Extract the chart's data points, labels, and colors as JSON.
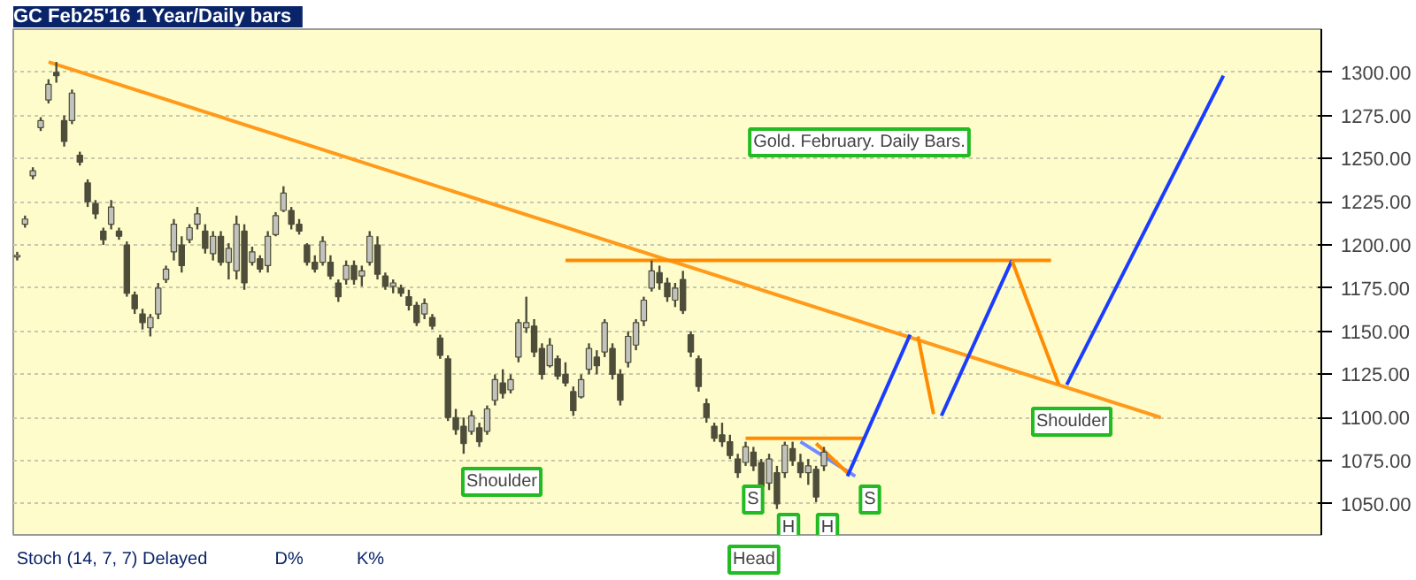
{
  "chart_data": {
    "type": "candlestick",
    "title": "GC Feb25'16   1 Year/Daily bars",
    "subtitle": "Gold. February. Daily Bars.",
    "color": "#4d4d3a",
    "categories": [
      null,
      null,
      null,
      null,
      null,
      null,
      null,
      null,
      null,
      null,
      null,
      null,
      null,
      null,
      null,
      null,
      null,
      null,
      null,
      null,
      null,
      null,
      null,
      null,
      null,
      null,
      null,
      null,
      null,
      null,
      null,
      null,
      null,
      null,
      null,
      null,
      null,
      null,
      null,
      null,
      null,
      null,
      null,
      null,
      null,
      null,
      null,
      null,
      null,
      null,
      null,
      null,
      null,
      null,
      null,
      null,
      null,
      null,
      null,
      null,
      null,
      null,
      null,
      null,
      null,
      null,
      null,
      null,
      null,
      null,
      null,
      null,
      null,
      null,
      null,
      null,
      null,
      null,
      null,
      null,
      null,
      null,
      null,
      null,
      null,
      null,
      null,
      null,
      null,
      null,
      null,
      null,
      null,
      null,
      null,
      null,
      null,
      null,
      null,
      null,
      null,
      null,
      null,
      null,
      null,
      null,
      null,
      null,
      null,
      null,
      null,
      null,
      null,
      null,
      null,
      null,
      null,
      null,
      null,
      null,
      null,
      null,
      null,
      null,
      null,
      null,
      null,
      null,
      null,
      null,
      null,
      null,
      null,
      null,
      null,
      null,
      null,
      null,
      null,
      null,
      null,
      null,
      null,
      null,
      null,
      null,
      null,
      null,
      null,
      null,
      null,
      null,
      null,
      null,
      null,
      null,
      null,
      null,
      null,
      null,
      null,
      null,
      null,
      null,
      null,
      null,
      null
    ],
    "ohlc": [
      [
        1193,
        1196,
        1191,
        1194
      ],
      [
        1212,
        1217,
        1210,
        1215
      ],
      [
        1240,
        1245,
        1238,
        1243
      ],
      [
        1268,
        1274,
        1266,
        1272
      ],
      [
        1284,
        1296,
        1282,
        1293
      ],
      [
        1300,
        1306,
        1294,
        1298
      ],
      [
        1272,
        1275,
        1257,
        1260
      ],
      [
        1272,
        1290,
        1270,
        1288
      ],
      [
        1252,
        1254,
        1246,
        1248
      ],
      [
        1236,
        1238,
        1222,
        1225
      ],
      [
        1224,
        1226,
        1215,
        1218
      ],
      [
        1208,
        1210,
        1200,
        1203
      ],
      [
        1212,
        1226,
        1209,
        1222
      ],
      [
        1208,
        1210,
        1203,
        1205
      ],
      [
        1200,
        1202,
        1170,
        1172
      ],
      [
        1171,
        1173,
        1160,
        1163
      ],
      [
        1160,
        1163,
        1151,
        1155
      ],
      [
        1152,
        1160,
        1147,
        1158
      ],
      [
        1160,
        1178,
        1157,
        1175
      ],
      [
        1180,
        1188,
        1178,
        1186
      ],
      [
        1196,
        1215,
        1191,
        1212
      ],
      [
        1200,
        1205,
        1184,
        1188
      ],
      [
        1203,
        1212,
        1201,
        1210
      ],
      [
        1212,
        1222,
        1209,
        1218
      ],
      [
        1208,
        1212,
        1195,
        1198
      ],
      [
        1195,
        1208,
        1191,
        1205
      ],
      [
        1205,
        1208,
        1188,
        1190
      ],
      [
        1190,
        1201,
        1180,
        1198
      ],
      [
        1185,
        1217,
        1180,
        1212
      ],
      [
        1208,
        1212,
        1174,
        1178
      ],
      [
        1190,
        1199,
        1188,
        1196
      ],
      [
        1192,
        1194,
        1184,
        1186
      ],
      [
        1188,
        1208,
        1184,
        1205
      ],
      [
        1206,
        1219,
        1205,
        1217
      ],
      [
        1220,
        1234,
        1219,
        1230
      ],
      [
        1220,
        1222,
        1209,
        1212
      ],
      [
        1212,
        1215,
        1206,
        1208
      ],
      [
        1200,
        1201,
        1188,
        1190
      ],
      [
        1190,
        1194,
        1184,
        1186
      ],
      [
        1190,
        1205,
        1188,
        1202
      ],
      [
        1190,
        1194,
        1180,
        1182
      ],
      [
        1178,
        1180,
        1167,
        1170
      ],
      [
        1180,
        1191,
        1177,
        1188
      ],
      [
        1188,
        1191,
        1177,
        1180
      ],
      [
        1182,
        1188,
        1176,
        1185
      ],
      [
        1190,
        1208,
        1188,
        1205
      ],
      [
        1200,
        1205,
        1180,
        1183
      ],
      [
        1182,
        1184,
        1174,
        1176
      ],
      [
        1176,
        1180,
        1172,
        1178
      ],
      [
        1175,
        1177,
        1170,
        1172
      ],
      [
        1170,
        1174,
        1162,
        1165
      ],
      [
        1165,
        1167,
        1153,
        1155
      ],
      [
        1160,
        1169,
        1157,
        1166
      ],
      [
        1158,
        1160,
        1151,
        1153
      ],
      [
        1146,
        1148,
        1134,
        1136
      ],
      [
        1134,
        1136,
        1098,
        1100
      ],
      [
        1100,
        1105,
        1090,
        1093
      ],
      [
        1095,
        1100,
        1079,
        1085
      ],
      [
        1092,
        1104,
        1090,
        1101
      ],
      [
        1094,
        1097,
        1083,
        1086
      ],
      [
        1092,
        1107,
        1090,
        1105
      ],
      [
        1110,
        1125,
        1107,
        1122
      ],
      [
        1120,
        1128,
        1111,
        1114
      ],
      [
        1116,
        1125,
        1114,
        1122
      ],
      [
        1135,
        1157,
        1132,
        1155
      ],
      [
        1152,
        1170,
        1149,
        1155
      ],
      [
        1153,
        1157,
        1135,
        1138
      ],
      [
        1140,
        1143,
        1122,
        1125
      ],
      [
        1130,
        1146,
        1129,
        1142
      ],
      [
        1134,
        1136,
        1122,
        1124
      ],
      [
        1125,
        1132,
        1118,
        1120
      ],
      [
        1115,
        1118,
        1101,
        1104
      ],
      [
        1112,
        1125,
        1111,
        1122
      ],
      [
        1128,
        1143,
        1125,
        1140
      ],
      [
        1135,
        1139,
        1125,
        1130
      ],
      [
        1138,
        1157,
        1135,
        1155
      ],
      [
        1140,
        1143,
        1122,
        1125
      ],
      [
        1125,
        1128,
        1107,
        1110
      ],
      [
        1132,
        1150,
        1129,
        1147
      ],
      [
        1142,
        1157,
        1139,
        1155
      ],
      [
        1156,
        1170,
        1153,
        1168
      ],
      [
        1175,
        1191,
        1173,
        1185
      ],
      [
        1184,
        1188,
        1174,
        1178
      ],
      [
        1178,
        1181,
        1167,
        1170
      ],
      [
        1168,
        1178,
        1164,
        1175
      ],
      [
        1180,
        1185,
        1160,
        1162
      ],
      [
        1148,
        1150,
        1135,
        1138
      ],
      [
        1134,
        1136,
        1115,
        1118
      ],
      [
        1108,
        1111,
        1097,
        1100
      ],
      [
        1095,
        1097,
        1086,
        1088
      ],
      [
        1090,
        1097,
        1083,
        1086
      ],
      [
        1086,
        1090,
        1076,
        1078
      ],
      [
        1076,
        1079,
        1065,
        1068
      ],
      [
        1074,
        1086,
        1072,
        1083
      ],
      [
        1080,
        1083,
        1069,
        1072
      ],
      [
        1074,
        1076,
        1058,
        1060
      ],
      [
        1062,
        1079,
        1058,
        1076
      ],
      [
        1068,
        1072,
        1047,
        1050
      ],
      [
        1068,
        1086,
        1065,
        1084
      ],
      [
        1082,
        1086,
        1072,
        1075
      ],
      [
        1074,
        1079,
        1065,
        1068
      ],
      [
        1068,
        1076,
        1061,
        1072
      ],
      [
        1070,
        1072,
        1051,
        1054
      ],
      [
        1072,
        1083,
        1069,
        1080
      ],
      null,
      null,
      null,
      null,
      null,
      null,
      null,
      null,
      null,
      null,
      null,
      null,
      null,
      null,
      null,
      null,
      null,
      null,
      null,
      null,
      null,
      null,
      null,
      null,
      null,
      null,
      null,
      null,
      null,
      null,
      null,
      null,
      null,
      null,
      null,
      null,
      null,
      null,
      null,
      null,
      null,
      null,
      null,
      null,
      null,
      null,
      null,
      null,
      null,
      null,
      null,
      null,
      null,
      null,
      null,
      null,
      null,
      null,
      null,
      null,
      null,
      null,
      null
    ],
    "series": [
      {
        "type": "line",
        "color": "#ff9a1a",
        "values": [
          null,
          null,
          null,
          null,
          1306,
          null,
          null,
          null,
          null,
          null,
          null,
          null,
          null,
          null,
          null,
          null,
          null,
          null,
          null,
          null,
          null,
          null,
          null,
          null,
          null,
          null,
          null,
          null,
          null,
          null,
          null,
          null,
          null,
          null,
          null,
          null,
          null,
          null,
          null,
          null,
          null,
          null,
          null,
          null,
          null,
          null,
          null,
          null,
          null,
          null,
          null,
          null,
          null,
          null,
          null,
          null,
          null,
          null,
          null,
          null,
          null,
          null,
          null,
          null,
          null,
          null,
          null,
          null,
          null,
          null,
          null,
          null,
          null,
          null,
          null,
          null,
          null,
          null,
          null,
          null,
          null,
          null,
          null,
          null,
          null,
          null,
          null,
          null,
          null,
          null,
          null,
          null,
          null,
          null,
          null,
          null,
          null,
          null,
          null,
          null,
          null,
          null,
          null,
          null,
          null,
          null,
          null,
          null,
          null,
          null,
          null,
          null,
          null,
          null,
          null,
          null,
          null,
          null,
          null,
          null,
          null,
          null,
          null,
          null,
          null,
          null,
          null,
          null,
          null,
          null,
          null,
          null,
          null,
          null,
          null,
          null,
          null,
          null,
          null,
          null,
          null,
          null,
          null,
          null,
          null,
          null,
          1100,
          null,
          null,
          null,
          null,
          null,
          null,
          null,
          null,
          null,
          null,
          null,
          null,
          null,
          null,
          null,
          null,
          null,
          null,
          null,
          null
        ]
      },
      {
        "type": "line",
        "color": "#ff8c00",
        "values": [
          null,
          null,
          null,
          null,
          null,
          null,
          null,
          null,
          null,
          null,
          null,
          null,
          null,
          null,
          null,
          null,
          null,
          null,
          null,
          null,
          null,
          null,
          null,
          null,
          null,
          null,
          null,
          null,
          null,
          null,
          null,
          null,
          null,
          null,
          null,
          null,
          null,
          null,
          null,
          null,
          null,
          null,
          null,
          null,
          null,
          null,
          null,
          null,
          null,
          null,
          null,
          null,
          null,
          null,
          null,
          null,
          null,
          null,
          null,
          null,
          null,
          null,
          null,
          null,
          null,
          null,
          null,
          null,
          null,
          null,
          1191,
          null,
          null,
          null,
          null,
          null,
          null,
          null,
          null,
          null,
          null,
          null,
          null,
          null,
          null,
          null,
          null,
          null,
          null,
          null,
          null,
          null,
          null,
          null,
          null,
          null,
          null,
          null,
          null,
          null,
          null,
          null,
          null,
          null,
          null,
          null,
          null,
          null,
          null,
          null,
          null,
          null,
          null,
          null,
          null,
          null,
          null,
          null,
          null,
          null,
          null,
          null,
          null,
          null,
          null,
          null,
          null,
          null,
          null,
          null,
          null,
          null,
          1191,
          null,
          null,
          null,
          null,
          null,
          null,
          null,
          null,
          null,
          null,
          null,
          null,
          null,
          null,
          null,
          null,
          null,
          null,
          null,
          null,
          null,
          null,
          null,
          null,
          null,
          null,
          null,
          null,
          null,
          null,
          null,
          null,
          null,
          null
        ]
      },
      {
        "type": "line",
        "color": "#ff8c00",
        "values": [
          null,
          null,
          null,
          null,
          null,
          null,
          null,
          null,
          null,
          null,
          null,
          null,
          null,
          null,
          null,
          null,
          null,
          null,
          null,
          null,
          null,
          null,
          null,
          null,
          null,
          null,
          null,
          null,
          null,
          null,
          null,
          null,
          null,
          null,
          null,
          null,
          null,
          null,
          null,
          null,
          null,
          null,
          null,
          null,
          null,
          null,
          null,
          null,
          null,
          null,
          null,
          null,
          null,
          null,
          null,
          null,
          null,
          null,
          null,
          null,
          null,
          null,
          null,
          null,
          null,
          null,
          null,
          null,
          null,
          null,
          null,
          null,
          null,
          null,
          null,
          null,
          null,
          null,
          null,
          null,
          null,
          null,
          null,
          null,
          null,
          null,
          null,
          null,
          null,
          null,
          null,
          null,
          null,
          1088,
          null,
          null,
          null,
          null,
          null,
          null,
          null,
          null,
          null,
          null,
          null,
          null,
          null,
          null,
          1088,
          null,
          null,
          null,
          null,
          null,
          null,
          null,
          null,
          null,
          null,
          null,
          null,
          null,
          null,
          null,
          null,
          null,
          null,
          null,
          null,
          null,
          null,
          null,
          null,
          null,
          null,
          null,
          null,
          null,
          null,
          null,
          null,
          null,
          null,
          null,
          null,
          null,
          null,
          null,
          null,
          null,
          null,
          null,
          null,
          null,
          null,
          null,
          null,
          null,
          null,
          null,
          null,
          null,
          null,
          null,
          null,
          null,
          null
        ]
      },
      {
        "type": "line",
        "color": "#6f8cff",
        "values": [
          null,
          null,
          null,
          null,
          null,
          null,
          null,
          null,
          null,
          null,
          null,
          null,
          null,
          null,
          null,
          null,
          null,
          null,
          null,
          null,
          null,
          null,
          null,
          null,
          null,
          null,
          null,
          null,
          null,
          null,
          null,
          null,
          null,
          null,
          null,
          null,
          null,
          null,
          null,
          null,
          null,
          null,
          null,
          null,
          null,
          null,
          null,
          null,
          null,
          null,
          null,
          null,
          null,
          null,
          null,
          null,
          null,
          null,
          null,
          null,
          null,
          null,
          null,
          null,
          null,
          null,
          null,
          null,
          null,
          null,
          null,
          null,
          null,
          null,
          null,
          null,
          null,
          null,
          null,
          null,
          null,
          null,
          null,
          null,
          null,
          null,
          null,
          null,
          null,
          null,
          null,
          null,
          null,
          null,
          null,
          null,
          null,
          null,
          null,
          null,
          1086,
          null,
          null,
          null,
          null,
          null,
          null,
          1066,
          null,
          null,
          null,
          null,
          null,
          null,
          null,
          null,
          null,
          null,
          null,
          null,
          null,
          null,
          null,
          null,
          null,
          null,
          null,
          null,
          null,
          null,
          null,
          null,
          null,
          null,
          null,
          null,
          null,
          null,
          null,
          null,
          null,
          null,
          null,
          null,
          null,
          null,
          null,
          null,
          null,
          null,
          null,
          null,
          null,
          null,
          null,
          null,
          null,
          null,
          null,
          null,
          null,
          null,
          null,
          null,
          null,
          null,
          null
        ]
      },
      {
        "type": "line",
        "color": "#ff8c00",
        "values": [
          null,
          null,
          null,
          null,
          null,
          null,
          null,
          null,
          null,
          null,
          null,
          null,
          null,
          null,
          null,
          null,
          null,
          null,
          null,
          null,
          null,
          null,
          null,
          null,
          null,
          null,
          null,
          null,
          null,
          null,
          null,
          null,
          null,
          null,
          null,
          null,
          null,
          null,
          null,
          null,
          null,
          null,
          null,
          null,
          null,
          null,
          null,
          null,
          null,
          null,
          null,
          null,
          null,
          null,
          null,
          null,
          null,
          null,
          null,
          null,
          null,
          null,
          null,
          null,
          null,
          null,
          null,
          null,
          null,
          null,
          null,
          null,
          null,
          null,
          null,
          null,
          null,
          null,
          null,
          null,
          null,
          null,
          null,
          null,
          null,
          null,
          null,
          null,
          null,
          null,
          null,
          null,
          null,
          null,
          null,
          null,
          null,
          null,
          null,
          null,
          null,
          null,
          1085,
          null,
          null,
          null,
          1068,
          null,
          null,
          null,
          null,
          null,
          null,
          null,
          null,
          null,
          null,
          null,
          null,
          null,
          null,
          null,
          null,
          null,
          null,
          null,
          null,
          null,
          null,
          null,
          null,
          null,
          null,
          null,
          null,
          null,
          null,
          null,
          null,
          null,
          null,
          null,
          null,
          null,
          null,
          null,
          null,
          null,
          null,
          null,
          null,
          null,
          null,
          null,
          null,
          null,
          null,
          null,
          null,
          null,
          null,
          null,
          null,
          null,
          null,
          null,
          null
        ]
      },
      {
        "type": "line",
        "color": "#1a3cff",
        "values": [
          null,
          null,
          null,
          null,
          null,
          null,
          null,
          null,
          null,
          null,
          null,
          null,
          null,
          null,
          null,
          null,
          null,
          null,
          null,
          null,
          null,
          null,
          null,
          null,
          null,
          null,
          null,
          null,
          null,
          null,
          null,
          null,
          null,
          null,
          null,
          null,
          null,
          null,
          null,
          null,
          null,
          null,
          null,
          null,
          null,
          null,
          null,
          null,
          null,
          null,
          null,
          null,
          null,
          null,
          null,
          null,
          null,
          null,
          null,
          null,
          null,
          null,
          null,
          null,
          null,
          null,
          null,
          null,
          null,
          null,
          null,
          null,
          null,
          null,
          null,
          null,
          null,
          null,
          null,
          null,
          null,
          null,
          null,
          null,
          null,
          null,
          null,
          null,
          null,
          null,
          null,
          null,
          null,
          null,
          null,
          null,
          null,
          null,
          null,
          null,
          null,
          null,
          null,
          null,
          null,
          null,
          1066,
          null,
          null,
          null,
          null,
          null,
          null,
          null,
          1148,
          null,
          null,
          null,
          null,
          null,
          null,
          null,
          null,
          null,
          null,
          null,
          null,
          null,
          null,
          null,
          null,
          null,
          null,
          null,
          null,
          null,
          null,
          null,
          null,
          null,
          null,
          null,
          null,
          null,
          null,
          null,
          null,
          null,
          null,
          null,
          null,
          null,
          null,
          null,
          null,
          null,
          null,
          null,
          null,
          null,
          null,
          null,
          null,
          null,
          null,
          null,
          null
        ]
      },
      {
        "type": "line",
        "color": "#ff8c00",
        "values": [
          null,
          null,
          null,
          null,
          null,
          null,
          null,
          null,
          null,
          null,
          null,
          null,
          null,
          null,
          null,
          null,
          null,
          null,
          null,
          null,
          null,
          null,
          null,
          null,
          null,
          null,
          null,
          null,
          null,
          null,
          null,
          null,
          null,
          null,
          null,
          null,
          null,
          null,
          null,
          null,
          null,
          null,
          null,
          null,
          null,
          null,
          null,
          null,
          null,
          null,
          null,
          null,
          null,
          null,
          null,
          null,
          null,
          null,
          null,
          null,
          null,
          null,
          null,
          null,
          null,
          null,
          null,
          null,
          null,
          null,
          null,
          null,
          null,
          null,
          null,
          null,
          null,
          null,
          null,
          null,
          null,
          null,
          null,
          null,
          null,
          null,
          null,
          null,
          null,
          null,
          null,
          null,
          null,
          null,
          null,
          null,
          null,
          null,
          null,
          null,
          null,
          null,
          null,
          null,
          null,
          null,
          null,
          null,
          null,
          null,
          null,
          null,
          null,
          null,
          null,
          1147,
          null,
          1102,
          null,
          null,
          null,
          null,
          null,
          null,
          null,
          null,
          null,
          null,
          null,
          null,
          null,
          null,
          null,
          null,
          null,
          null,
          null,
          null,
          null,
          null,
          null,
          null,
          null,
          null,
          null,
          null,
          null,
          null,
          null,
          null,
          null,
          null,
          null,
          null,
          null,
          null,
          null,
          null,
          null,
          null,
          null,
          null,
          null,
          null,
          null,
          null,
          null
        ]
      },
      {
        "type": "line",
        "color": "#1a3cff",
        "values": [
          null,
          null,
          null,
          null,
          null,
          null,
          null,
          null,
          null,
          null,
          null,
          null,
          null,
          null,
          null,
          null,
          null,
          null,
          null,
          null,
          null,
          null,
          null,
          null,
          null,
          null,
          null,
          null,
          null,
          null,
          null,
          null,
          null,
          null,
          null,
          null,
          null,
          null,
          null,
          null,
          null,
          null,
          null,
          null,
          null,
          null,
          null,
          null,
          null,
          null,
          null,
          null,
          null,
          null,
          null,
          null,
          null,
          null,
          null,
          null,
          null,
          null,
          null,
          null,
          null,
          null,
          null,
          null,
          null,
          null,
          null,
          null,
          null,
          null,
          null,
          null,
          null,
          null,
          null,
          null,
          null,
          null,
          null,
          null,
          null,
          null,
          null,
          null,
          null,
          null,
          null,
          null,
          null,
          null,
          null,
          null,
          null,
          null,
          null,
          null,
          null,
          null,
          null,
          null,
          null,
          null,
          null,
          null,
          null,
          null,
          null,
          null,
          null,
          null,
          null,
          null,
          null,
          null,
          1101,
          null,
          null,
          null,
          null,
          null,
          null,
          null,
          null,
          1191,
          null,
          null,
          null,
          null,
          null,
          null,
          null,
          null,
          null,
          null,
          null,
          null,
          null,
          null,
          null,
          null,
          null,
          null,
          null,
          null,
          null,
          null,
          null,
          null,
          null,
          null,
          null,
          null,
          null,
          null,
          null,
          null,
          null,
          null,
          null,
          null,
          null,
          null,
          null
        ]
      },
      {
        "type": "line",
        "color": "#ff8c00",
        "values": [
          null,
          null,
          null,
          null,
          null,
          null,
          null,
          null,
          null,
          null,
          null,
          null,
          null,
          null,
          null,
          null,
          null,
          null,
          null,
          null,
          null,
          null,
          null,
          null,
          null,
          null,
          null,
          null,
          null,
          null,
          null,
          null,
          null,
          null,
          null,
          null,
          null,
          null,
          null,
          null,
          null,
          null,
          null,
          null,
          null,
          null,
          null,
          null,
          null,
          null,
          null,
          null,
          null,
          null,
          null,
          null,
          null,
          null,
          null,
          null,
          null,
          null,
          null,
          null,
          null,
          null,
          null,
          null,
          null,
          null,
          null,
          null,
          null,
          null,
          null,
          null,
          null,
          null,
          null,
          null,
          null,
          null,
          null,
          null,
          null,
          null,
          null,
          null,
          null,
          null,
          null,
          null,
          null,
          null,
          null,
          null,
          null,
          null,
          null,
          null,
          null,
          null,
          null,
          null,
          null,
          null,
          null,
          null,
          null,
          null,
          null,
          null,
          null,
          null,
          null,
          null,
          null,
          null,
          null,
          null,
          null,
          null,
          null,
          null,
          null,
          null,
          null,
          1191,
          null,
          null,
          null,
          null,
          null,
          1119,
          null,
          null,
          null,
          null,
          null,
          null,
          null,
          null,
          null,
          null,
          null,
          null,
          null,
          null,
          null,
          null,
          null,
          null,
          null,
          null,
          null,
          null,
          null,
          null,
          null,
          null,
          null,
          null,
          null,
          null,
          null,
          null,
          null
        ]
      },
      {
        "type": "line",
        "color": "#1a3cff",
        "values": [
          null,
          null,
          null,
          null,
          null,
          null,
          null,
          null,
          null,
          null,
          null,
          null,
          null,
          null,
          null,
          null,
          null,
          null,
          null,
          null,
          null,
          null,
          null,
          null,
          null,
          null,
          null,
          null,
          null,
          null,
          null,
          null,
          null,
          null,
          null,
          null,
          null,
          null,
          null,
          null,
          null,
          null,
          null,
          null,
          null,
          null,
          null,
          null,
          null,
          null,
          null,
          null,
          null,
          null,
          null,
          null,
          null,
          null,
          null,
          null,
          null,
          null,
          null,
          null,
          null,
          null,
          null,
          null,
          null,
          null,
          null,
          null,
          null,
          null,
          null,
          null,
          null,
          null,
          null,
          null,
          null,
          null,
          null,
          null,
          null,
          null,
          null,
          null,
          null,
          null,
          null,
          null,
          null,
          null,
          null,
          null,
          null,
          null,
          null,
          null,
          null,
          null,
          null,
          null,
          null,
          null,
          null,
          null,
          null,
          null,
          null,
          null,
          null,
          null,
          null,
          null,
          null,
          null,
          null,
          null,
          null,
          null,
          null,
          null,
          null,
          null,
          null,
          null,
          null,
          null,
          null,
          null,
          null,
          null,
          1119,
          null,
          null,
          null,
          null,
          null,
          null,
          null,
          null,
          null,
          null,
          null,
          null,
          null,
          null,
          null,
          null,
          null,
          null,
          null,
          1298,
          null,
          null,
          null,
          null,
          null,
          null,
          null,
          null,
          null,
          null,
          null,
          null
        ]
      }
    ],
    "ylim": [
      1032,
      1325
    ],
    "yticks": [
      {
        "value": 1050,
        "label": "1050.00"
      },
      {
        "value": 1075,
        "label": "1075.00"
      },
      {
        "value": 1100,
        "label": "1100.00"
      },
      {
        "value": 1125,
        "label": "1125.00"
      },
      {
        "value": 1150,
        "label": "1150.00"
      },
      {
        "value": 1175,
        "label": "1175.00"
      },
      {
        "value": 1200,
        "label": "1200.00"
      },
      {
        "value": 1225,
        "label": "1225.00"
      },
      {
        "value": 1250,
        "label": "1250.00"
      },
      {
        "value": 1275,
        "label": "1275.00"
      },
      {
        "value": 1300,
        "label": "1300.00"
      }
    ],
    "tick_labels": "y",
    "grid": "y",
    "annotations": [
      "Shoulder",
      "S",
      "H",
      "H",
      "S",
      "Shoulder",
      "Stoch (14, 7, 7) Delayed",
      "D%",
      "K%",
      "Head"
    ]
  }
}
